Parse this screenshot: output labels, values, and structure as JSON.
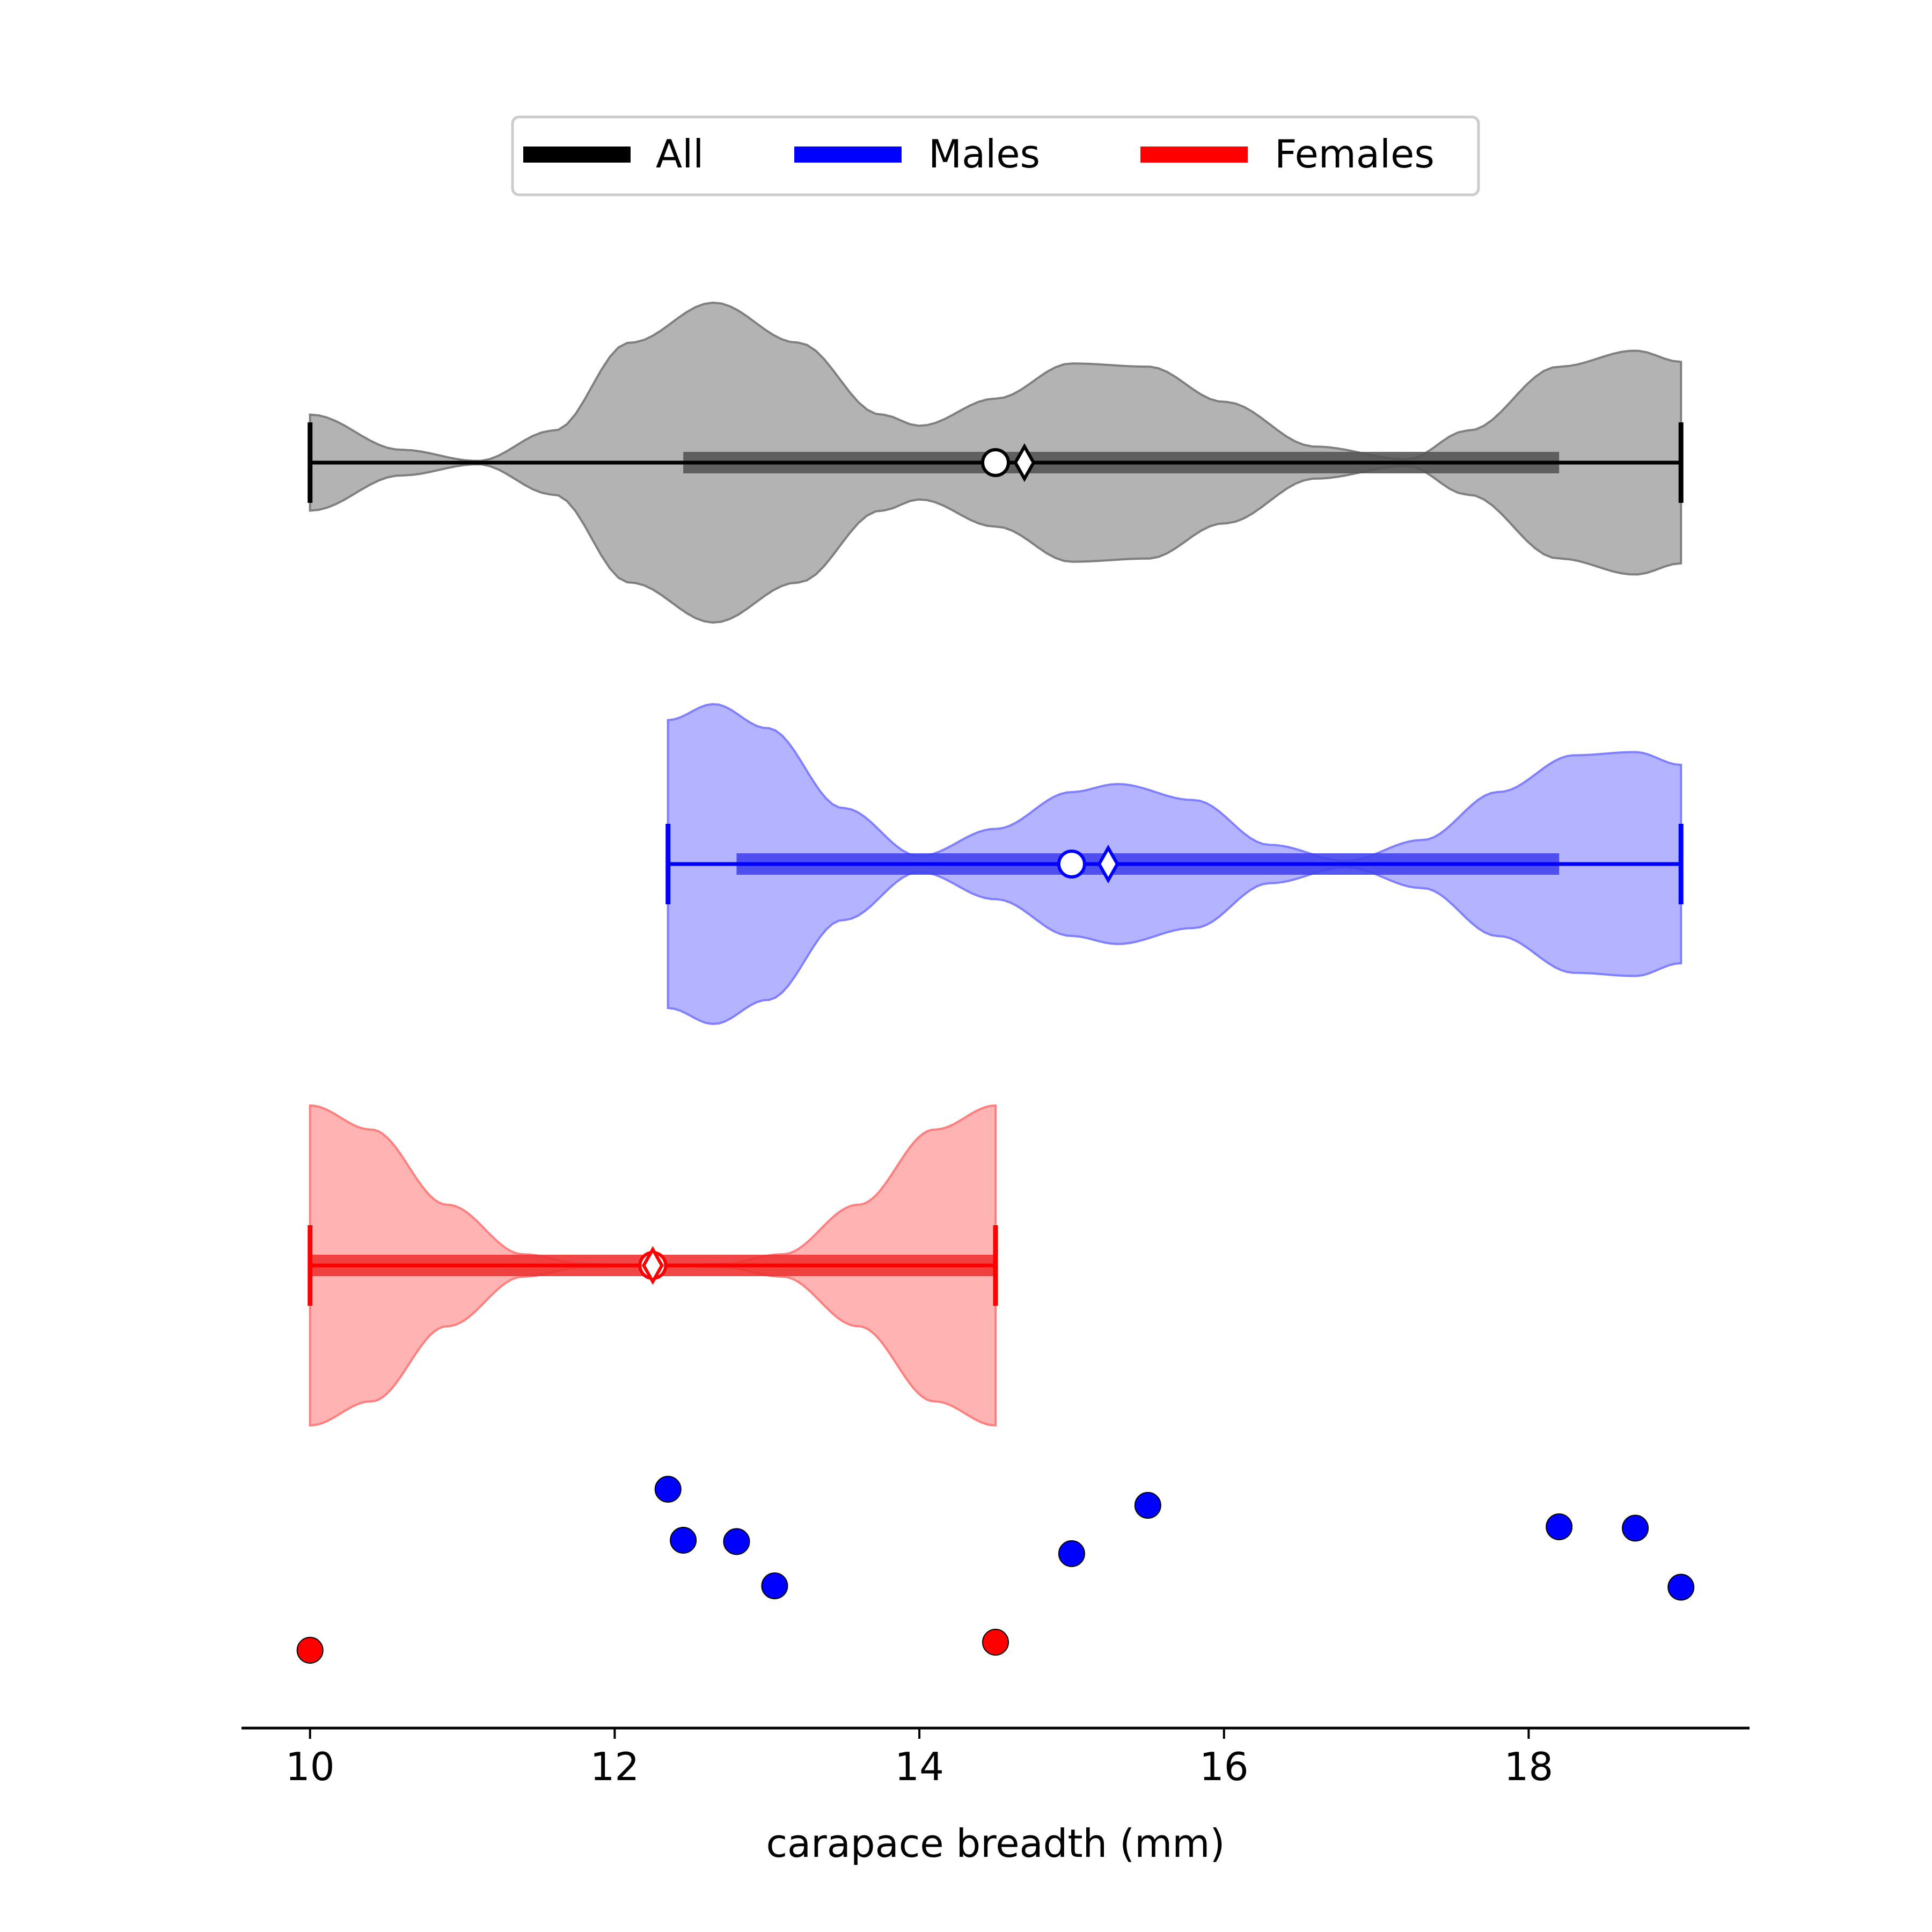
{
  "chart_data": {
    "type": "violin",
    "xlabel": "carapace breadth (mm)",
    "xlim": [
      9.55,
      19.45
    ],
    "xticks": [
      10,
      12,
      14,
      16,
      18
    ],
    "legend": {
      "placement": "top-center",
      "entries": [
        {
          "label": "All",
          "color": "#000000"
        },
        {
          "label": "Males",
          "color": "#0000ff"
        },
        {
          "label": "Females",
          "color": "#ff0000"
        }
      ]
    },
    "groups": [
      {
        "key": "all",
        "color": "#000000",
        "fill": "#b3b3b3",
        "min": 10.0,
        "max": 19.0,
        "q1": 12.45,
        "q3": 18.2,
        "median": 14.5,
        "mean": 14.69,
        "density": [
          [
            10.0,
            0.3
          ],
          [
            10.6,
            0.08
          ],
          [
            11.1,
            0.01
          ],
          [
            11.6,
            0.2
          ],
          [
            12.1,
            0.75
          ],
          [
            12.65,
            1.0
          ],
          [
            13.2,
            0.75
          ],
          [
            13.75,
            0.3
          ],
          [
            14.0,
            0.23
          ],
          [
            14.5,
            0.4
          ],
          [
            15.0,
            0.62
          ],
          [
            15.5,
            0.6
          ],
          [
            16.0,
            0.38
          ],
          [
            16.6,
            0.1
          ],
          [
            17.2,
            0.02
          ],
          [
            17.6,
            0.2
          ],
          [
            18.2,
            0.6
          ],
          [
            18.7,
            0.7
          ],
          [
            19.0,
            0.63
          ]
        ]
      },
      {
        "key": "males",
        "color": "#0000ff",
        "fill": "#b3b3ff",
        "min": 12.35,
        "max": 19.0,
        "q1": 12.8,
        "q3": 18.2,
        "median": 15.0,
        "mean": 15.24,
        "density": [
          [
            12.35,
            0.9
          ],
          [
            12.65,
            1.0
          ],
          [
            13.0,
            0.85
          ],
          [
            13.5,
            0.35
          ],
          [
            14.0,
            0.05
          ],
          [
            14.5,
            0.22
          ],
          [
            15.0,
            0.45
          ],
          [
            15.3,
            0.5
          ],
          [
            15.8,
            0.4
          ],
          [
            16.3,
            0.12
          ],
          [
            16.8,
            0.02
          ],
          [
            17.3,
            0.15
          ],
          [
            17.8,
            0.45
          ],
          [
            18.3,
            0.68
          ],
          [
            18.7,
            0.7
          ],
          [
            19.0,
            0.62
          ]
        ]
      },
      {
        "key": "females",
        "color": "#ff0000",
        "fill": "#ffb3b3",
        "min": 10.0,
        "max": 14.5,
        "q1": 10.0,
        "q3": 14.5,
        "median": 12.25,
        "mean": 12.25,
        "density": [
          [
            10.0,
            1.0
          ],
          [
            10.4,
            0.85
          ],
          [
            10.9,
            0.38
          ],
          [
            11.4,
            0.07
          ],
          [
            11.8,
            0.01
          ],
          [
            12.25,
            0.0
          ],
          [
            12.7,
            0.01
          ],
          [
            13.1,
            0.07
          ],
          [
            13.6,
            0.38
          ],
          [
            14.1,
            0.85
          ],
          [
            14.5,
            1.0
          ]
        ]
      }
    ],
    "points": [
      {
        "x": 12.35,
        "jitter": 0.55,
        "group": "males"
      },
      {
        "x": 12.45,
        "jitter": 0.36,
        "group": "males"
      },
      {
        "x": 12.8,
        "jitter": 0.355,
        "group": "males"
      },
      {
        "x": 13.05,
        "jitter": 0.19,
        "group": "males"
      },
      {
        "x": 15.0,
        "jitter": 0.31,
        "group": "males"
      },
      {
        "x": 15.5,
        "jitter": 0.49,
        "group": "males"
      },
      {
        "x": 18.2,
        "jitter": 0.41,
        "group": "males"
      },
      {
        "x": 18.7,
        "jitter": 0.405,
        "group": "males"
      },
      {
        "x": 19.0,
        "jitter": 0.185,
        "group": "males"
      },
      {
        "x": 10.0,
        "jitter": -0.05,
        "group": "females"
      },
      {
        "x": 14.5,
        "jitter": -0.02,
        "group": "females"
      }
    ]
  }
}
